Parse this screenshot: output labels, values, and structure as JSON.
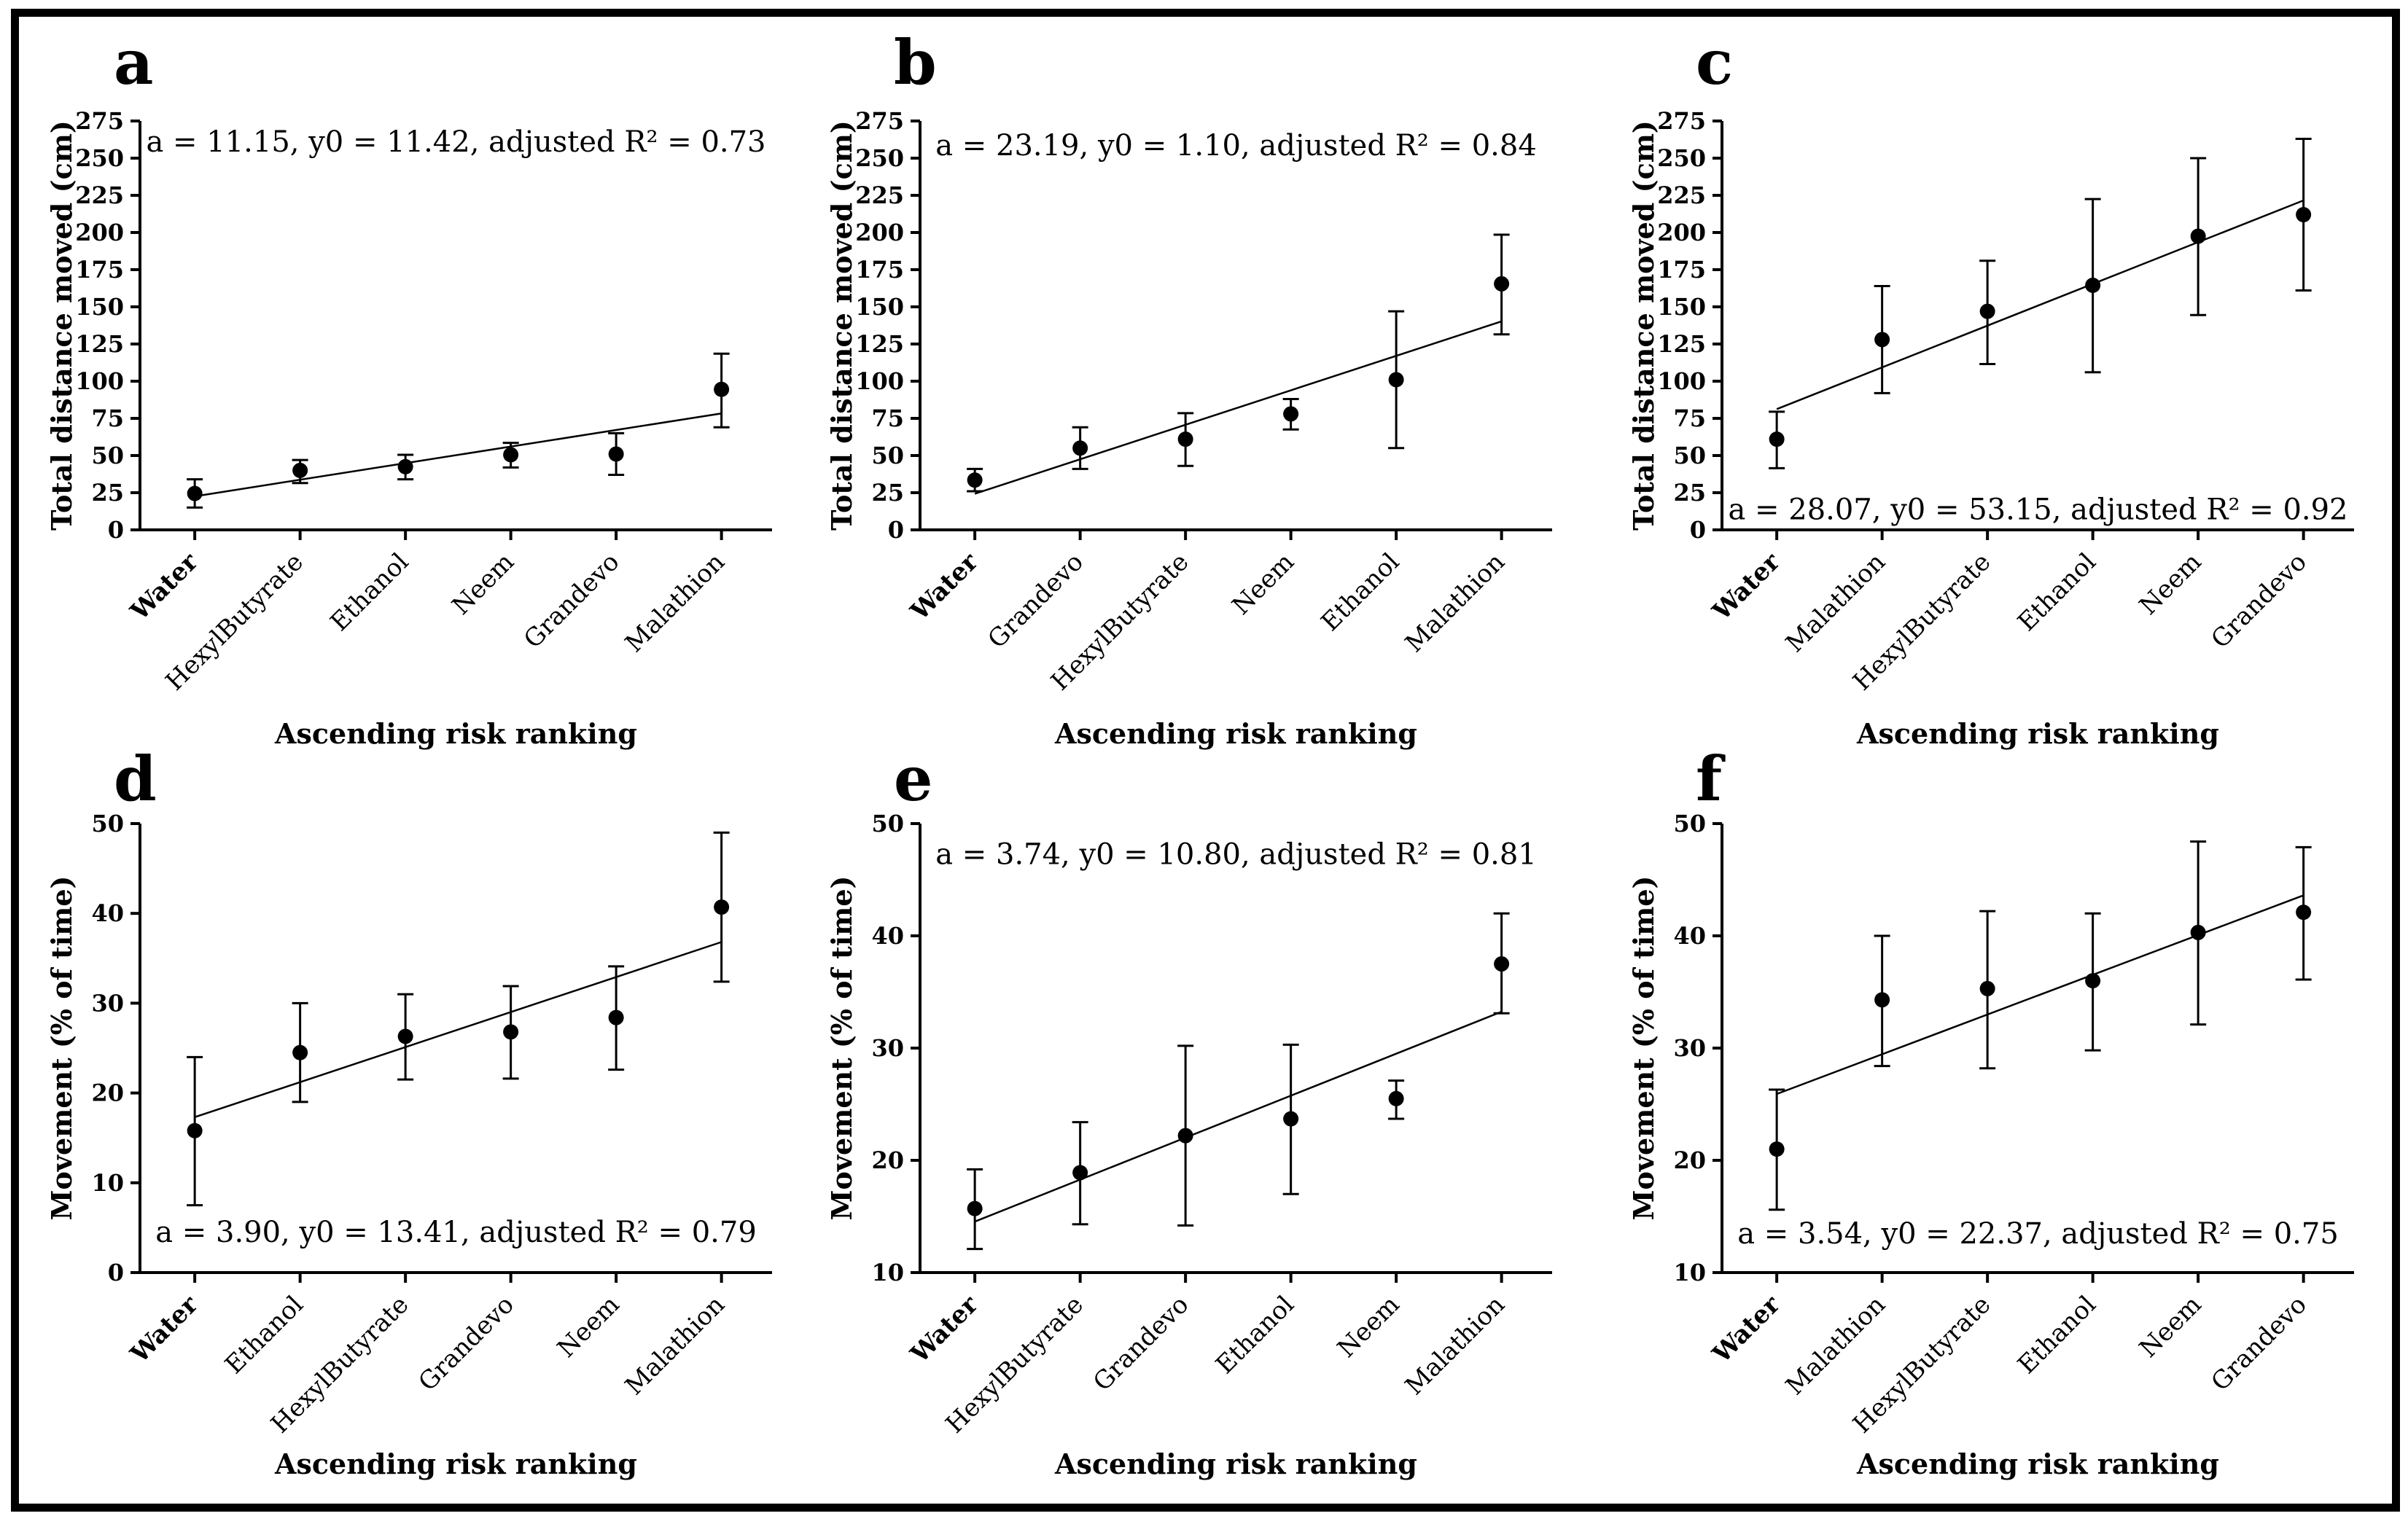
{
  "figure": {
    "background_color": "#ffffff",
    "frame_color": "#000000",
    "point_color": "#000000",
    "line_color": "#000000"
  },
  "chart_data": [
    {
      "id": "a",
      "type": "scatter",
      "panel_label": "a",
      "title_annotation": "a = 11.15, y0 = 11.42, adjusted R² = 0.73",
      "annotation_position": "top",
      "annotation_y": 254.5,
      "xlabel": "Ascending risk ranking",
      "ylabel": "Total distance moved (cm)",
      "ylim": [
        0,
        275
      ],
      "ytick_step": 25,
      "grid": false,
      "bold_category": "Water",
      "categories": [
        "Water",
        "HexylButyrate",
        "Ethanol",
        "Neem",
        "Grandevo",
        "Malathion"
      ],
      "points": [
        {
          "label": "Water",
          "y": 24.5,
          "lo": 15,
          "hi": 34
        },
        {
          "label": "HexylButyrate",
          "y": 40,
          "lo": 31.5,
          "hi": 47
        },
        {
          "label": "Ethanol",
          "y": 42.5,
          "lo": 34,
          "hi": 50.5
        },
        {
          "label": "Neem",
          "y": 50.5,
          "lo": 42,
          "hi": 58.5
        },
        {
          "label": "Grandevo",
          "y": 51,
          "lo": 37,
          "hi": 65
        },
        {
          "label": "Malathion",
          "y": 94.5,
          "lo": 69,
          "hi": 118.5
        }
      ],
      "fit": {
        "a": 11.15,
        "y0": 11.42,
        "adjusted_r2": 0.73
      }
    },
    {
      "id": "b",
      "type": "scatter",
      "panel_label": "b",
      "title_annotation": "a = 23.19, y0 = 1.10, adjusted R² = 0.84",
      "annotation_position": "top",
      "annotation_y": 252,
      "xlabel": "Ascending risk ranking",
      "ylabel": "Total distance moved (cm)",
      "ylim": [
        0,
        275
      ],
      "ytick_step": 25,
      "grid": false,
      "bold_category": "Water",
      "categories": [
        "Water",
        "Grandevo",
        "HexylButyrate",
        "Neem",
        "Ethanol",
        "Malathion"
      ],
      "points": [
        {
          "label": "Water",
          "y": 33.5,
          "lo": 26,
          "hi": 41
        },
        {
          "label": "Grandevo",
          "y": 55,
          "lo": 41,
          "hi": 69
        },
        {
          "label": "HexylButyrate",
          "y": 61,
          "lo": 43,
          "hi": 78.5
        },
        {
          "label": "Neem",
          "y": 78,
          "lo": 67.5,
          "hi": 88
        },
        {
          "label": "Ethanol",
          "y": 101,
          "lo": 55,
          "hi": 147
        },
        {
          "label": "Malathion",
          "y": 165.5,
          "lo": 131.5,
          "hi": 198.5
        }
      ],
      "fit": {
        "a": 23.19,
        "y0": 1.1,
        "adjusted_r2": 0.84
      }
    },
    {
      "id": "c",
      "type": "scatter",
      "panel_label": "c",
      "title_annotation": "a = 28.07, y0 = 53.15, adjusted R² = 0.92",
      "annotation_position": "bottom",
      "annotation_y": 7,
      "xlabel": "Ascending risk ranking",
      "ylabel": "Total distance moved (cm)",
      "ylim": [
        0,
        275
      ],
      "ytick_step": 25,
      "grid": false,
      "bold_category": "Water",
      "categories": [
        "Water",
        "Malathion",
        "HexylButyrate",
        "Ethanol",
        "Neem",
        "Grandevo"
      ],
      "points": [
        {
          "label": "Water",
          "y": 61,
          "lo": 41.5,
          "hi": 79.5
        },
        {
          "label": "Malathion",
          "y": 128,
          "lo": 92,
          "hi": 164
        },
        {
          "label": "HexylButyrate",
          "y": 147,
          "lo": 111.5,
          "hi": 181
        },
        {
          "label": "Ethanol",
          "y": 164.5,
          "lo": 106,
          "hi": 222.5
        },
        {
          "label": "Neem",
          "y": 197.5,
          "lo": 144.5,
          "hi": 250
        },
        {
          "label": "Grandevo",
          "y": 212,
          "lo": 161,
          "hi": 263
        }
      ],
      "fit": {
        "a": 28.07,
        "y0": 53.15,
        "adjusted_r2": 0.92
      }
    },
    {
      "id": "d",
      "type": "scatter",
      "panel_label": "d",
      "title_annotation": "a = 3.90, y0 = 13.41, adjusted R² = 0.79",
      "annotation_position": "bottom",
      "annotation_y": 3.4,
      "xlabel": "Ascending risk ranking",
      "ylabel": "Movement (% of time)",
      "ylim": [
        0,
        50
      ],
      "ytick_step": 10,
      "grid": false,
      "bold_category": "Water",
      "categories": [
        "Water",
        "Ethanol",
        "HexylButyrate",
        "Grandevo",
        "Neem",
        "Malathion"
      ],
      "points": [
        {
          "label": "Water",
          "y": 15.8,
          "lo": 7.5,
          "hi": 24
        },
        {
          "label": "Ethanol",
          "y": 24.5,
          "lo": 19,
          "hi": 30
        },
        {
          "label": "HexylButyrate",
          "y": 26.3,
          "lo": 21.5,
          "hi": 31
        },
        {
          "label": "Grandevo",
          "y": 26.8,
          "lo": 21.6,
          "hi": 31.9
        },
        {
          "label": "Neem",
          "y": 28.4,
          "lo": 22.6,
          "hi": 34.1
        },
        {
          "label": "Malathion",
          "y": 40.7,
          "lo": 32.4,
          "hi": 49
        }
      ],
      "fit": {
        "a": 3.9,
        "y0": 13.41,
        "adjusted_r2": 0.79
      }
    },
    {
      "id": "e",
      "type": "scatter",
      "panel_label": "e",
      "title_annotation": "a = 3.74, y0 = 10.80, adjusted R² = 0.81",
      "annotation_position": "top",
      "annotation_y": 46.4,
      "xlabel": "Ascending risk ranking",
      "ylabel": "Movement (% of time)",
      "ylim": [
        10,
        50
      ],
      "ytick_step": 10,
      "grid": false,
      "bold_category": "Water",
      "categories": [
        "Water",
        "HexylButyrate",
        "Grandevo",
        "Ethanol",
        "Neem",
        "Malathion"
      ],
      "points": [
        {
          "label": "Water",
          "y": 15.7,
          "lo": 12.1,
          "hi": 19.2
        },
        {
          "label": "HexylButyrate",
          "y": 18.9,
          "lo": 14.3,
          "hi": 23.4
        },
        {
          "label": "Grandevo",
          "y": 22.2,
          "lo": 14.2,
          "hi": 30.2
        },
        {
          "label": "Ethanol",
          "y": 23.7,
          "lo": 17,
          "hi": 30.3
        },
        {
          "label": "Neem",
          "y": 25.5,
          "lo": 23.7,
          "hi": 27.1
        },
        {
          "label": "Malathion",
          "y": 37.5,
          "lo": 33.1,
          "hi": 42
        }
      ],
      "fit": {
        "a": 3.74,
        "y0": 10.8,
        "adjusted_r2": 0.81
      }
    },
    {
      "id": "f",
      "type": "scatter",
      "panel_label": "f",
      "title_annotation": "a = 3.54, y0 = 22.37, adjusted R² = 0.75",
      "annotation_position": "bottom",
      "annotation_y": 12.6,
      "xlabel": "Ascending risk ranking",
      "ylabel": "Movement (% of time)",
      "ylim": [
        10,
        50
      ],
      "ytick_step": 10,
      "grid": false,
      "bold_category": "Water",
      "categories": [
        "Water",
        "Malathion",
        "HexylButyrate",
        "Ethanol",
        "Neem",
        "Grandevo"
      ],
      "points": [
        {
          "label": "Water",
          "y": 21,
          "lo": 15.6,
          "hi": 26.3
        },
        {
          "label": "Malathion",
          "y": 34.3,
          "lo": 28.4,
          "hi": 40
        },
        {
          "label": "HexylButyrate",
          "y": 35.3,
          "lo": 28.2,
          "hi": 42.2
        },
        {
          "label": "Ethanol",
          "y": 36,
          "lo": 29.8,
          "hi": 42
        },
        {
          "label": "Neem",
          "y": 40.3,
          "lo": 32.1,
          "hi": 48.4
        },
        {
          "label": "Grandevo",
          "y": 42.1,
          "lo": 36.1,
          "hi": 47.9
        }
      ],
      "fit": {
        "a": 3.54,
        "y0": 22.37,
        "adjusted_r2": 0.75
      }
    }
  ]
}
